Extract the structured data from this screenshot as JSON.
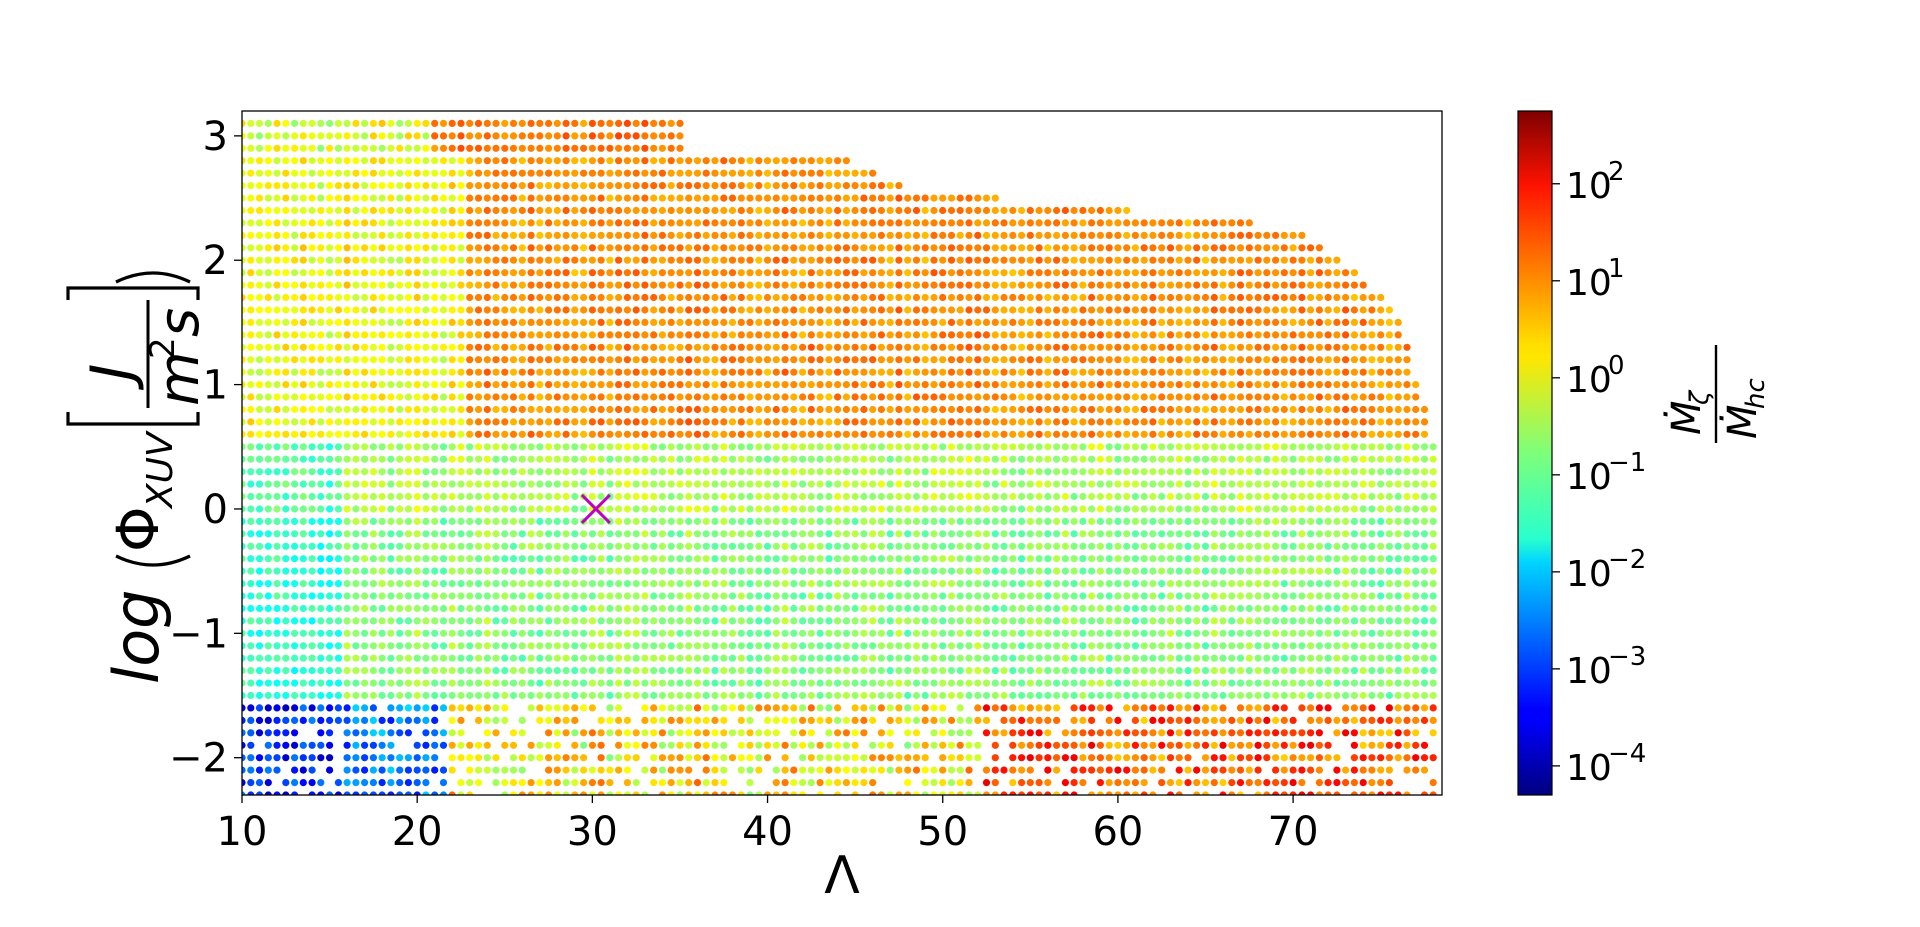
{
  "chart_data": {
    "type": "scatter",
    "title": "",
    "xlabel": "Λ",
    "ylabel": {
      "prefix": "log",
      "phi": "Φ",
      "phi_sub": "XUV",
      "unit_num": "J",
      "unit_den": "m",
      "unit_den_sup": "2",
      "unit_den_tail": "s"
    },
    "xlim": [
      10,
      78.5
    ],
    "ylim": [
      -2.3,
      3.2
    ],
    "xticks": [
      "10",
      "20",
      "30",
      "40",
      "50",
      "60",
      "70"
    ],
    "yticks": [
      "−2",
      "−1",
      "0",
      "1",
      "2",
      "3"
    ],
    "grid": false,
    "colormap": "jet",
    "color_scale": "log",
    "colorbar": {
      "label_num": "Ṁ",
      "label_num_sub": "ζ",
      "label_den": "Ṁ",
      "label_den_sub": "hc",
      "clim_log10": [
        -4.3,
        2.75
      ],
      "ticks": [
        {
          "base": "10",
          "exp": "−4",
          "log10": -4
        },
        {
          "base": "10",
          "exp": "−3",
          "log10": -3
        },
        {
          "base": "10",
          "exp": "−2",
          "log10": -2
        },
        {
          "base": "10",
          "exp": "−1",
          "log10": -1
        },
        {
          "base": "10",
          "exp": "0",
          "log10": 0
        },
        {
          "base": "10",
          "exp": "1",
          "log10": 1
        },
        {
          "base": "10",
          "exp": "2",
          "log10": 2
        }
      ]
    },
    "grid_spacing": {
      "dx": 0.5,
      "dy": 0.1
    },
    "regions_log10_ratio": [
      {
        "xmin": 10,
        "xmax": 35,
        "ymin": 2.9,
        "ymax": 3.2,
        "mean": -0.05,
        "spread": 0.55
      },
      {
        "xmin": 21,
        "xmax": 35,
        "ymin": 2.9,
        "ymax": 3.2,
        "mean": 1.05,
        "spread": 0.25
      },
      {
        "xmin": 10,
        "xmax": 23,
        "ymin": 0.6,
        "ymax": 2.9,
        "mean": 0.05,
        "spread": 0.4
      },
      {
        "xmin": 23,
        "xmax": 78,
        "ymin": 0.3,
        "ymax": 2.9,
        "mean": 0.9,
        "spread": 0.3
      },
      {
        "xmin": 10,
        "xmax": 78,
        "ymin": 0.0,
        "ymax": 0.6,
        "mean": -0.45,
        "spread": 0.35
      },
      {
        "xmin": 10,
        "xmax": 78,
        "ymin": -1.5,
        "ymax": 0.0,
        "mean": -0.7,
        "spread": 0.35
      },
      {
        "xmin": 10,
        "xmax": 78,
        "ymin": -2.3,
        "ymax": -1.5,
        "mean": 0.2,
        "spread": 0.9
      }
    ],
    "upper_envelope": [
      [
        35,
        3.2
      ],
      [
        44,
        2.85
      ],
      [
        48,
        2.6
      ],
      [
        56,
        2.45
      ],
      [
        66,
        2.35
      ],
      [
        70,
        2.25
      ],
      [
        73,
        2.0
      ],
      [
        76,
        1.6
      ],
      [
        78.5,
        0.3
      ]
    ],
    "marker": {
      "x": 30.2,
      "y": 0.0,
      "symbol": "x",
      "color": "#c000c0"
    }
  }
}
